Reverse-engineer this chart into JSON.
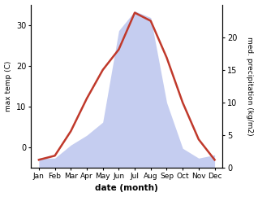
{
  "months": [
    "Jan",
    "Feb",
    "Mar",
    "Apr",
    "May",
    "Jun",
    "Jul",
    "Aug",
    "Sep",
    "Oct",
    "Nov",
    "Dec"
  ],
  "month_indices": [
    0,
    1,
    2,
    3,
    4,
    5,
    6,
    7,
    8,
    9,
    10,
    11
  ],
  "temperature": [
    -3,
    -2,
    4,
    12,
    19,
    24,
    33,
    31,
    22,
    11,
    2,
    -3
  ],
  "precipitation": [
    1.5,
    1.5,
    3.5,
    5,
    7,
    21,
    24,
    23,
    10,
    3,
    1.5,
    2
  ],
  "temp_color": "#c0392b",
  "precip_fill_color": "#c5cdf0",
  "temp_ylim": [
    -5,
    35
  ],
  "precip_ylim": [
    0,
    25
  ],
  "temp_yticks": [
    0,
    10,
    20,
    30
  ],
  "precip_yticks": [
    0,
    5,
    10,
    15,
    20
  ],
  "xlabel": "date (month)",
  "ylabel_left": "max temp (C)",
  "ylabel_right": "med. precipitation (kg/m2)",
  "fig_width": 3.18,
  "fig_height": 2.42,
  "dpi": 100
}
